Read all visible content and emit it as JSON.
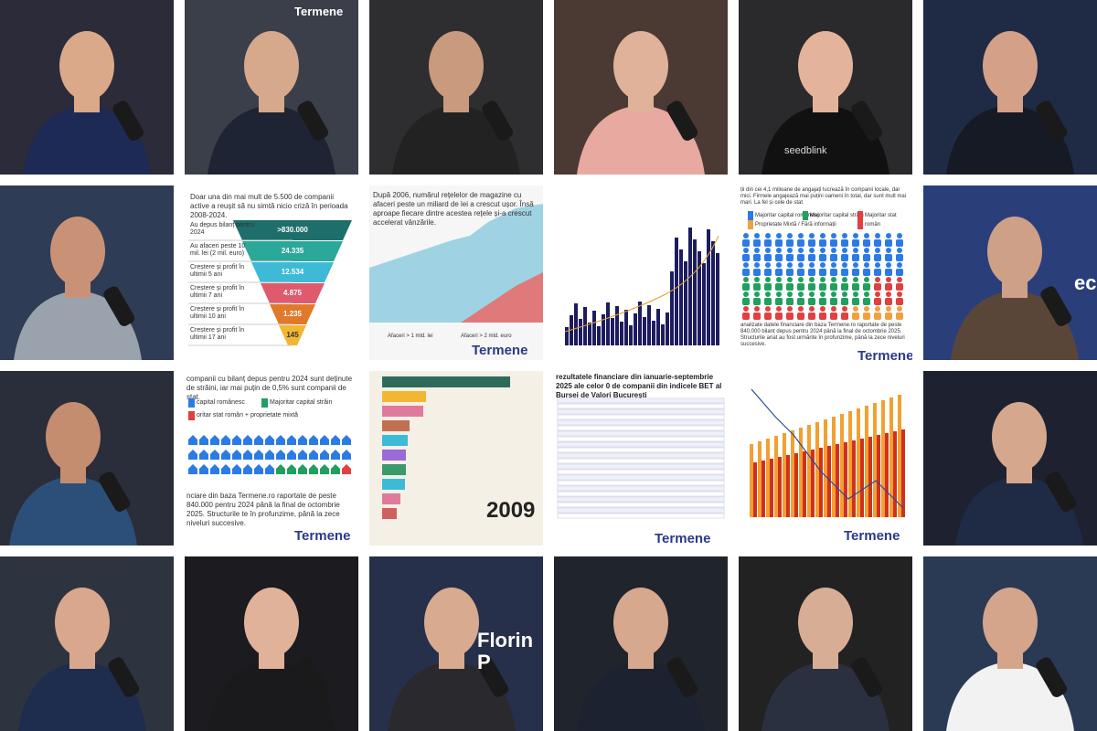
{
  "logo": "Termene",
  "photo_texts": {
    "studio_sign": "Termene",
    "shirt": "seedblink",
    "screen_name": "Florin P",
    "screen_side": "ecu"
  },
  "funnel_tile": {
    "intro": "Doar una din mai mult de 5.500 de companii active a reușit să nu simtă nicio criză în perioada 2008-2024.",
    "steps": [
      {
        "label": "Au depus bilanț pentru 2024",
        "value": ">830.000"
      },
      {
        "label": "Au afaceri peste 10 mil. lei (2 mil. euro)",
        "value": "24.335"
      },
      {
        "label": "Creștere și profit în ultimii 5 ani",
        "value": "12.534"
      },
      {
        "label": "Creștere și profit în ultimii 7 ani",
        "value": "4.875"
      },
      {
        "label": "Creștere și profit în ultimii 10 ani",
        "value": "1.235"
      },
      {
        "label": "Creștere și profit în ultimii 17 ani",
        "value": "145"
      }
    ]
  },
  "area_tile": {
    "text": "După 2006, numărul rețelelor de magazine cu afaceri peste un miliard de lei a crescut ușor. Însă aproape fiecare dintre acestea rețele și-a crescut accelerat vânzările.",
    "legend": [
      "Afaceri > 1 mld. lei",
      "Afaceri > 2 mld. euro"
    ]
  },
  "people_tile": {
    "text": "ții din cei 4,1 milioane de angajați lucrează în companii locale, dar mici. Firmele angajează mai puțini oameni în total, dar sunt mult mai mari. La fel și cele de stat",
    "legend": [
      "Majoritar capital românesc",
      "Majoritar capital străin",
      "Majoritar stat român",
      "Proprietate Mixtă / Fără informații"
    ],
    "footer": "analizate datele financiare din baza Termene.ro raportate de peste 840.000 bilanț depus pentru 2024 până la final de octombrie 2025. Structurile ariat au fost urmărite în profunzime, până la zece niveluri succesive."
  },
  "houses_tile": {
    "text": "companii cu bilanț depus pentru 2024 sunt deținute de străini, iar mai puțin de 0,5% sunt companii de stat.",
    "legend": [
      "capital românesc",
      "Majoritar capital străin",
      "oritar stat român + proprietate mixtă"
    ],
    "footer": "nciare din baza Termene.ro raportate de peste 840.000 pentru 2024 până la final de octombrie 2025. Structurile te în profunzime, până la zece niveluri succesive."
  },
  "race_tile": {
    "year": "2009"
  },
  "table_tile": {
    "title": "rezultatele financiare din ianuarie-septembrie 2025 ale celor 0 de companii din indicele BET al Bursei de Valori București"
  }
}
